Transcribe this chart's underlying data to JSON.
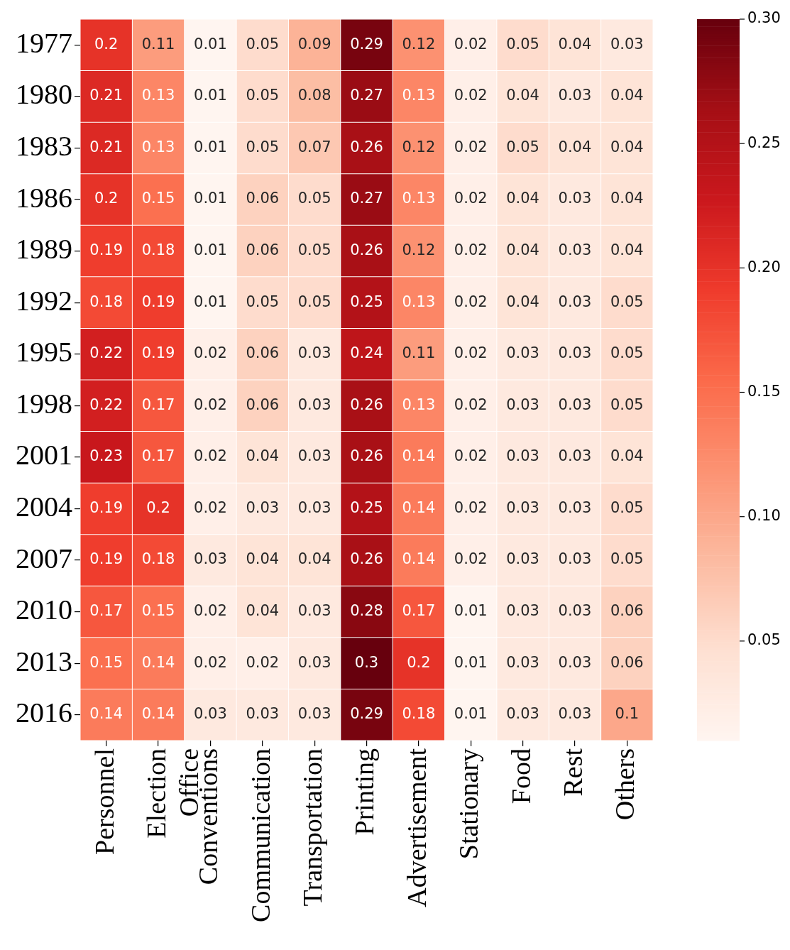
{
  "chart_data": {
    "type": "heatmap",
    "categories": [
      "Personnel",
      "Election\nOffice",
      "Conventions",
      "Communication",
      "Transportation",
      "Printing",
      "Advertisement",
      "Stationary",
      "Food",
      "Rest",
      "Others"
    ],
    "y_categories": [
      "1977",
      "1980",
      "1983",
      "1986",
      "1989",
      "1992",
      "1995",
      "1998",
      "2001",
      "2004",
      "2007",
      "2010",
      "2013",
      "2016"
    ],
    "cells": [
      [
        0.2,
        0.11,
        0.01,
        0.05,
        0.09,
        0.29,
        0.12,
        0.02,
        0.05,
        0.04,
        0.03
      ],
      [
        0.21,
        0.13,
        0.01,
        0.05,
        0.08,
        0.27,
        0.13,
        0.02,
        0.04,
        0.03,
        0.04
      ],
      [
        0.21,
        0.13,
        0.01,
        0.05,
        0.07,
        0.26,
        0.12,
        0.02,
        0.05,
        0.04,
        0.04
      ],
      [
        0.2,
        0.15,
        0.01,
        0.06,
        0.05,
        0.27,
        0.13,
        0.02,
        0.04,
        0.03,
        0.04
      ],
      [
        0.19,
        0.18,
        0.01,
        0.06,
        0.05,
        0.26,
        0.12,
        0.02,
        0.04,
        0.03,
        0.04
      ],
      [
        0.18,
        0.19,
        0.01,
        0.05,
        0.05,
        0.25,
        0.13,
        0.02,
        0.04,
        0.03,
        0.05
      ],
      [
        0.22,
        0.19,
        0.02,
        0.06,
        0.03,
        0.24,
        0.11,
        0.02,
        0.03,
        0.03,
        0.05
      ],
      [
        0.22,
        0.17,
        0.02,
        0.06,
        0.03,
        0.26,
        0.13,
        0.02,
        0.03,
        0.03,
        0.05
      ],
      [
        0.23,
        0.17,
        0.02,
        0.04,
        0.03,
        0.26,
        0.14,
        0.02,
        0.03,
        0.03,
        0.04
      ],
      [
        0.19,
        0.2,
        0.02,
        0.03,
        0.03,
        0.25,
        0.14,
        0.02,
        0.03,
        0.03,
        0.05
      ],
      [
        0.19,
        0.18,
        0.03,
        0.04,
        0.04,
        0.26,
        0.14,
        0.02,
        0.03,
        0.03,
        0.05
      ],
      [
        0.17,
        0.15,
        0.02,
        0.04,
        0.03,
        0.28,
        0.17,
        0.01,
        0.03,
        0.03,
        0.06
      ],
      [
        0.15,
        0.14,
        0.02,
        0.02,
        0.03,
        0.3,
        0.2,
        0.01,
        0.03,
        0.03,
        0.06
      ],
      [
        0.14,
        0.14,
        0.03,
        0.03,
        0.03,
        0.29,
        0.18,
        0.01,
        0.03,
        0.03,
        0.1
      ]
    ],
    "data_labels": true,
    "clim": [
      0.01,
      0.3
    ],
    "cticks": [
      {
        "value": 0.05,
        "label": "0.05"
      },
      {
        "value": 0.1,
        "label": "0.10"
      },
      {
        "value": 0.15,
        "label": "0.15"
      },
      {
        "value": 0.2,
        "label": "0.20"
      },
      {
        "value": 0.25,
        "label": "0.25"
      },
      {
        "value": 0.3,
        "label": "0.30"
      }
    ]
  }
}
